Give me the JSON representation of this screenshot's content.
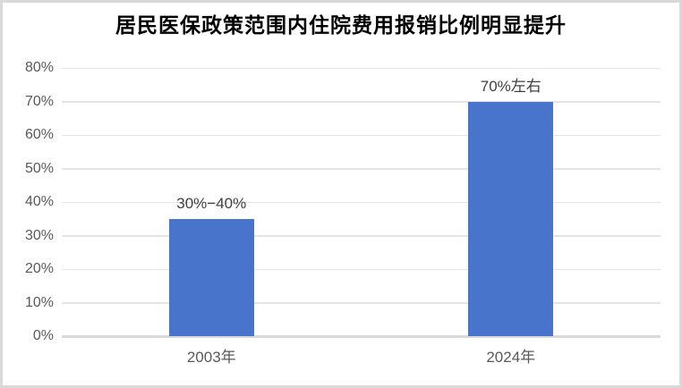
{
  "page": {
    "background": "#ffffff",
    "frame_border_color": "#d9d9d9"
  },
  "chart_data": {
    "type": "bar",
    "title": "居民医保政策范围内住院费用报销比例明显提升",
    "categories": [
      "2003年",
      "2024年"
    ],
    "values": [
      35,
      70
    ],
    "data_labels": [
      "30%−40%",
      "70%左右"
    ],
    "xlabel": "",
    "ylabel": "",
    "ylim": [
      0,
      80
    ],
    "ytick_step": 10,
    "ytick_labels": [
      "0%",
      "10%",
      "20%",
      "30%",
      "40%",
      "50%",
      "60%",
      "70%",
      "80%"
    ],
    "grid": "horizontal",
    "legend": "none",
    "colors": {
      "bar": "#4874cb",
      "gridline": "#e4e4e4",
      "baseline": "#d9d9d9",
      "axis_label": "#595959",
      "data_label": "#404040",
      "title": "#000000"
    }
  }
}
